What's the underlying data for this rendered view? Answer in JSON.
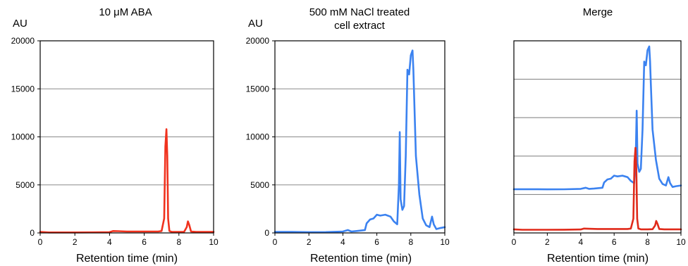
{
  "chart_data": [
    {
      "type": "line",
      "title": "10 μM ABA",
      "ylabel": "AU",
      "xlabel": "Retention time (min)",
      "xlim": [
        0,
        10
      ],
      "ylim": [
        0,
        20000
      ],
      "xticks": [
        "0",
        "2",
        "4",
        "6",
        "8",
        "10"
      ],
      "yticks": [
        "0",
        "5000",
        "10000",
        "15000",
        "20000"
      ],
      "grid": true,
      "series": [
        {
          "color": "#f0321e",
          "x": [
            0,
            0.5,
            1,
            2,
            3,
            4,
            4.2,
            4.5,
            5,
            6,
            6.8,
            7.0,
            7.15,
            7.22,
            7.28,
            7.33,
            7.38,
            7.45,
            7.6,
            8.0,
            8.3,
            8.45,
            8.52,
            8.6,
            8.7,
            9,
            10
          ],
          "y": [
            100,
            50,
            50,
            50,
            60,
            80,
            200,
            180,
            150,
            150,
            150,
            200,
            1500,
            9000,
            10800,
            8000,
            1500,
            200,
            100,
            100,
            120,
            600,
            1200,
            800,
            150,
            100,
            100
          ]
        }
      ]
    },
    {
      "type": "line",
      "title": "500 mM NaCl treated cell extract",
      "title_lines": [
        "500 mM NaCl treated",
        "cell extract"
      ],
      "ylabel": "AU",
      "xlabel": "Retention time (min)",
      "xlim": [
        0,
        10
      ],
      "ylim": [
        0,
        20000
      ],
      "xticks": [
        "0",
        "2",
        "4",
        "6",
        "8",
        "10"
      ],
      "yticks": [
        "0",
        "5000",
        "10000",
        "15000",
        "20000"
      ],
      "grid": true,
      "series": [
        {
          "color": "#3b82f0",
          "x": [
            0,
            1,
            2,
            3,
            4,
            4.3,
            4.5,
            4.8,
            5.3,
            5.4,
            5.6,
            5.8,
            6.0,
            6.2,
            6.5,
            6.8,
            7.0,
            7.2,
            7.3,
            7.35,
            7.4,
            7.5,
            7.6,
            7.7,
            7.8,
            7.9,
            8.0,
            8.1,
            8.15,
            8.2,
            8.3,
            8.5,
            8.7,
            8.9,
            9.1,
            9.25,
            9.35,
            9.5,
            9.7,
            10
          ],
          "y": [
            100,
            100,
            80,
            90,
            150,
            300,
            150,
            200,
            300,
            1000,
            1400,
            1500,
            1900,
            1800,
            1900,
            1700,
            1200,
            900,
            5000,
            10500,
            3500,
            2400,
            2800,
            8000,
            17000,
            16500,
            18500,
            19000,
            17000,
            14000,
            8000,
            4000,
            1500,
            800,
            600,
            1700,
            900,
            400,
            500,
            600
          ]
        }
      ]
    },
    {
      "type": "line",
      "title": "Merge",
      "xlabel": "Retention time (min)",
      "xlim": [
        0,
        10
      ],
      "xticks": [
        "0",
        "2",
        "4",
        "6",
        "8",
        "10"
      ],
      "grid": true,
      "series": [
        {
          "color": "#3b82f0",
          "x": [
            0,
            1,
            2,
            3,
            4,
            4.3,
            4.5,
            4.8,
            5.3,
            5.4,
            5.6,
            5.8,
            6.0,
            6.2,
            6.5,
            6.8,
            7.0,
            7.2,
            7.3,
            7.35,
            7.4,
            7.5,
            7.6,
            7.7,
            7.8,
            7.9,
            8.0,
            8.1,
            8.15,
            8.2,
            8.3,
            8.5,
            8.7,
            8.9,
            9.1,
            9.25,
            9.35,
            9.5,
            9.7,
            10
          ],
          "y": [
            100,
            100,
            80,
            90,
            150,
            300,
            150,
            200,
            300,
            1000,
            1400,
            1500,
            1900,
            1800,
            1900,
            1700,
            1200,
            900,
            5000,
            10500,
            3500,
            2400,
            2800,
            8000,
            17000,
            16500,
            18500,
            19000,
            17000,
            14000,
            8000,
            4000,
            1500,
            800,
            600,
            1700,
            900,
            400,
            500,
            600
          ]
        },
        {
          "color": "#e02a1a",
          "x": [
            0,
            0.5,
            1,
            2,
            3,
            4,
            4.2,
            4.5,
            5,
            6,
            6.8,
            7.0,
            7.15,
            7.22,
            7.28,
            7.33,
            7.38,
            7.45,
            7.6,
            8.0,
            8.3,
            8.45,
            8.52,
            8.6,
            8.7,
            9,
            10
          ],
          "y": [
            100,
            50,
            50,
            50,
            60,
            80,
            200,
            180,
            150,
            150,
            150,
            200,
            1500,
            9000,
            10800,
            8000,
            1500,
            200,
            100,
            100,
            120,
            600,
            1200,
            800,
            150,
            100,
            100
          ]
        }
      ]
    }
  ]
}
